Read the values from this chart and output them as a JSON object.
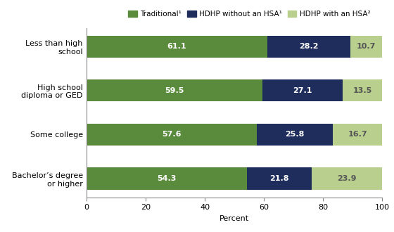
{
  "categories": [
    "Less than high\nschool",
    "High school\ndiploma or GED",
    "Some college",
    "Bachelor’s degree\nor higher"
  ],
  "traditional": [
    61.1,
    59.5,
    57.6,
    54.3
  ],
  "hdhp_no_hsa": [
    28.2,
    27.1,
    25.8,
    21.8
  ],
  "hdhp_hsa": [
    10.7,
    13.5,
    16.7,
    23.9
  ],
  "color_traditional": "#5a8a3c",
  "color_hdhp_no_hsa": "#1f2d5c",
  "color_hdhp_hsa": "#b8cf8e",
  "legend_labels": [
    "Traditional¹",
    "HDHP without an HSA¹",
    "HDHP with an HSA²"
  ],
  "xlabel": "Percent",
  "xlim": [
    0,
    100
  ],
  "xticks": [
    0,
    20,
    40,
    60,
    80,
    100
  ],
  "bar_height": 0.5,
  "label_fontsize": 8.0,
  "tick_fontsize": 8.0,
  "legend_fontsize": 7.5
}
